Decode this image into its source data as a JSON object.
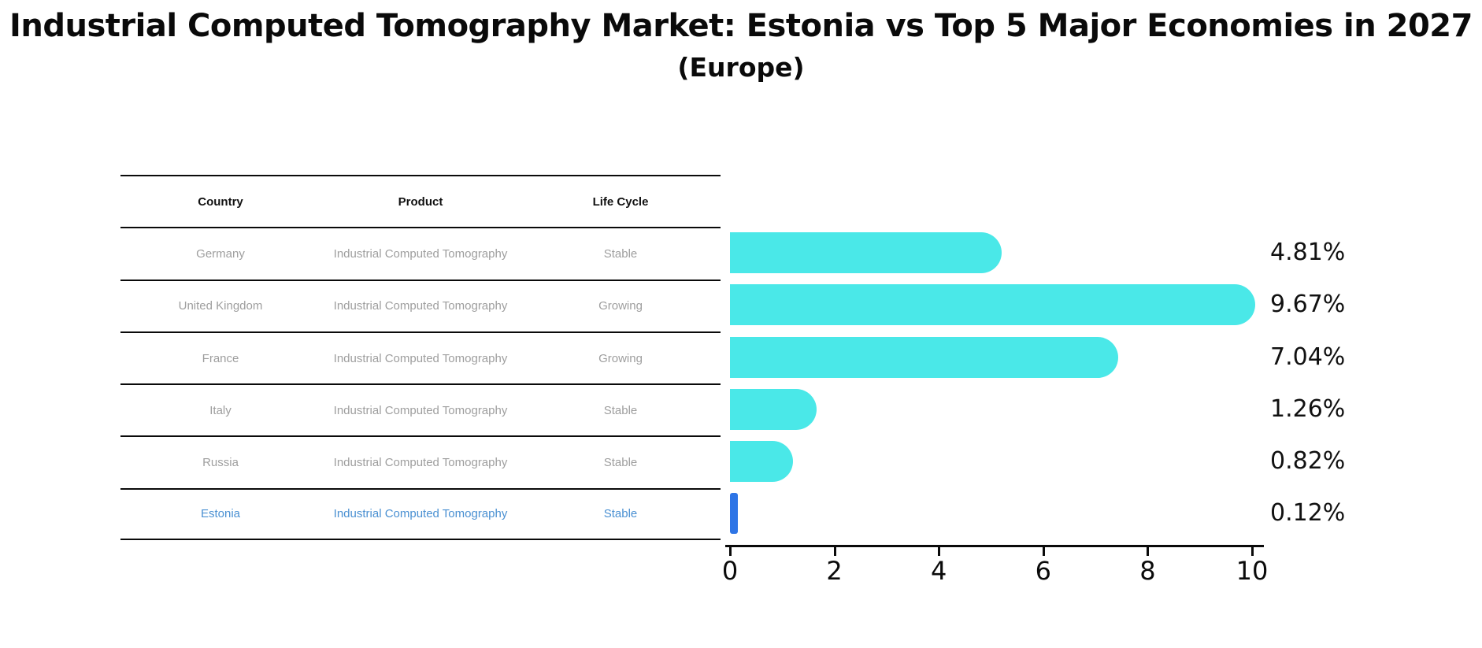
{
  "title": "Industrial Computed Tomography Market: Estonia vs Top 5 Major Economies in 2027",
  "subtitle": "(Europe)",
  "colors": {
    "bar": "#4AE8E8",
    "highlight_bar": "#2E75E6",
    "highlight_text": "#4A90D2",
    "row_text": "#9E9E9E",
    "header_text": "#111111",
    "axis": "#0A0A0A"
  },
  "table": {
    "headers": [
      "Country",
      "Product",
      "Life Cycle"
    ],
    "rows": [
      {
        "country": "Germany",
        "product": "Industrial Computed Tomography",
        "life_cycle": "Stable",
        "highlight": false
      },
      {
        "country": "United Kingdom",
        "product": "Industrial Computed Tomography",
        "life_cycle": "Growing",
        "highlight": false
      },
      {
        "country": "France",
        "product": "Industrial Computed Tomography",
        "life_cycle": "Growing",
        "highlight": false
      },
      {
        "country": "Italy",
        "product": "Industrial Computed Tomography",
        "life_cycle": "Stable",
        "highlight": false
      },
      {
        "country": "Russia",
        "product": "Industrial Computed Tomography",
        "life_cycle": "Stable",
        "highlight": false
      },
      {
        "country": "Estonia",
        "product": "Industrial Computed Tomography",
        "life_cycle": "Stable",
        "highlight": true
      }
    ]
  },
  "chart_data": {
    "type": "bar",
    "orientation": "horizontal",
    "title": "Industrial Computed Tomography Market: Estonia vs Top 5 Major Economies in 2027",
    "subtitle": "(Europe)",
    "categories": [
      "Germany",
      "United Kingdom",
      "France",
      "Italy",
      "Russia",
      "Estonia"
    ],
    "values": [
      4.81,
      9.67,
      7.04,
      1.26,
      0.82,
      0.12
    ],
    "value_labels": [
      "4.81%",
      "9.67%",
      "7.04%",
      "1.26%",
      "0.82%",
      "0.12%"
    ],
    "highlight_index": 5,
    "xlabel": "",
    "ylabel": "",
    "xlim": [
      0,
      10
    ],
    "xticks": [
      "0",
      "2",
      "4",
      "6",
      "8",
      "10"
    ],
    "grid": false,
    "legend": false
  }
}
